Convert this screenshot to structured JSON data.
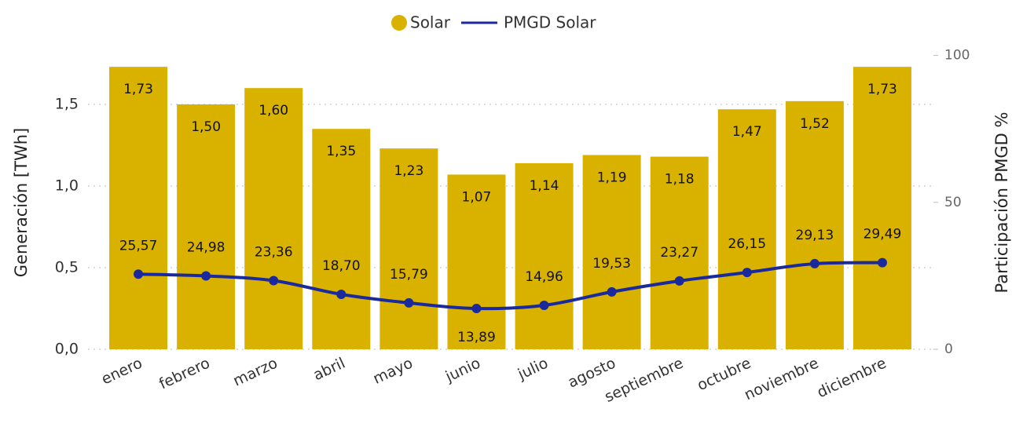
{
  "chart_data": {
    "type": "bar",
    "categories": [
      "enero",
      "febrero",
      "marzo",
      "abril",
      "mayo",
      "junio",
      "julio",
      "agosto",
      "septiembre",
      "octubre",
      "noviembre",
      "diciembre"
    ],
    "series": [
      {
        "name": "Solar",
        "type": "bar",
        "color": "#d9b200",
        "values": [
          1.73,
          1.5,
          1.6,
          1.35,
          1.23,
          1.07,
          1.14,
          1.19,
          1.18,
          1.47,
          1.52,
          1.73
        ],
        "value_labels": [
          "1,73",
          "1,50",
          "1,60",
          "1,35",
          "1,23",
          "1,07",
          "1,14",
          "1,19",
          "1,18",
          "1,47",
          "1,52",
          "1,73"
        ]
      },
      {
        "name": "PMGD Solar",
        "type": "line",
        "axis": "y2",
        "color": "#1a2a9c",
        "values": [
          25.57,
          24.98,
          23.36,
          18.7,
          15.79,
          13.89,
          14.96,
          19.53,
          23.27,
          26.15,
          29.13,
          29.49
        ],
        "value_labels": [
          "25,57",
          "24,98",
          "23,36",
          "18,70",
          "15,79",
          "13,89",
          "14,96",
          "19,53",
          "23,27",
          "26,15",
          "29,13",
          "29,49"
        ]
      }
    ],
    "y_label": "Generación [TWh]",
    "y2_label": "Participación PMGD %",
    "ylim": [
      0,
      1.8
    ],
    "yticks": [
      {
        "value": 0,
        "label": "0,0"
      },
      {
        "value": 0.5,
        "label": "0,5"
      },
      {
        "value": 1.0,
        "label": "1,0"
      },
      {
        "value": 1.5,
        "label": "1,5"
      }
    ],
    "y2lim": [
      0,
      100
    ],
    "y2ticks": [
      0,
      50,
      100
    ],
    "grid": true,
    "legend": "top"
  }
}
